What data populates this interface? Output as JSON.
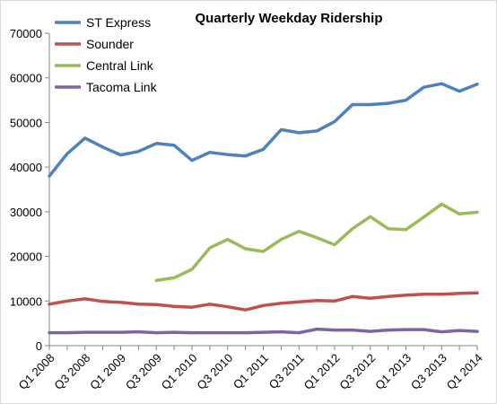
{
  "chart_data": {
    "type": "line",
    "title": "Quarterly Weekday Ridership",
    "xlabel": "",
    "ylabel": "",
    "ylim": [
      0,
      70000
    ],
    "yticks": [
      0,
      10000,
      20000,
      30000,
      40000,
      50000,
      60000,
      70000
    ],
    "grid": false,
    "legend_placement": "top-left",
    "categories": [
      "Q1 2008",
      "Q2 2008",
      "Q3 2008",
      "Q4 2008",
      "Q1 2009",
      "Q2 2009",
      "Q3 2009",
      "Q4 2009",
      "Q1 2010",
      "Q2 2010",
      "Q3 2010",
      "Q4 2010",
      "Q1 2011",
      "Q2 2011",
      "Q3 2011",
      "Q4 2011",
      "Q1 2012",
      "Q2 2012",
      "Q3 2012",
      "Q4 2012",
      "Q1 2013",
      "Q2 2013",
      "Q3 2013",
      "Q4 2013",
      "Q1 2014"
    ],
    "tick_labels": [
      "Q1 2008",
      "Q3 2008",
      "Q1 2009",
      "Q3 2009",
      "Q1 2010",
      "Q3 2010",
      "Q1 2011",
      "Q3 2011",
      "Q1 2012",
      "Q3 2012",
      "Q1 2013",
      "Q3 2013",
      "Q1 2014"
    ],
    "series": [
      {
        "name": "ST Express",
        "color": "#4f81bd",
        "values": [
          38000,
          43000,
          46500,
          44500,
          42700,
          43500,
          45300,
          44900,
          41500,
          43300,
          42800,
          42500,
          44000,
          48400,
          47700,
          48100,
          50200,
          54000,
          54000,
          54300,
          55000,
          57900,
          58700,
          57000,
          58600
        ]
      },
      {
        "name": "Sounder",
        "color": "#c0504d",
        "values": [
          9300,
          10000,
          10500,
          9900,
          9700,
          9300,
          9200,
          8800,
          8600,
          9300,
          8700,
          8000,
          9000,
          9500,
          9800,
          10100,
          10000,
          11000,
          10600,
          11000,
          11300,
          11500,
          11500,
          11700,
          11800
        ]
      },
      {
        "name": "Central Link",
        "color": "#9bbb59",
        "values": [
          null,
          null,
          null,
          null,
          null,
          null,
          14600,
          15200,
          17100,
          21900,
          23800,
          21700,
          21100,
          23800,
          25600,
          24200,
          22600,
          26200,
          28900,
          26200,
          26000,
          28800,
          31700,
          29500,
          29900
        ]
      },
      {
        "name": "Tacoma Link",
        "color": "#8064a2",
        "values": [
          2900,
          2900,
          3000,
          3000,
          3000,
          3100,
          2900,
          3000,
          2900,
          2900,
          2900,
          2900,
          3000,
          3100,
          2900,
          3700,
          3500,
          3500,
          3200,
          3500,
          3600,
          3600,
          3100,
          3400,
          3200
        ]
      }
    ]
  }
}
